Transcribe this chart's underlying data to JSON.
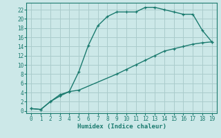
{
  "xlabel": "Humidex (Indice chaleur)",
  "xlim": [
    -0.5,
    19.5
  ],
  "ylim": [
    -0.5,
    23.5
  ],
  "xticks": [
    0,
    1,
    2,
    3,
    4,
    5,
    6,
    7,
    8,
    9,
    10,
    11,
    12,
    13,
    14,
    15,
    16,
    17,
    18,
    19
  ],
  "yticks": [
    0,
    2,
    4,
    6,
    8,
    10,
    12,
    14,
    16,
    18,
    20,
    22
  ],
  "bg_color": "#cce8e8",
  "grid_color": "#aacccc",
  "line_color": "#1a7a6e",
  "upper_curve_x": [
    0,
    1,
    2,
    3,
    4,
    5,
    6,
    7,
    8,
    9,
    10,
    11,
    12,
    13,
    14,
    15,
    16,
    17,
    18,
    19
  ],
  "upper_curve_y": [
    0.5,
    0.3,
    2.0,
    3.5,
    4.2,
    8.5,
    14.2,
    18.5,
    20.5,
    21.5,
    21.5,
    21.5,
    22.5,
    22.5,
    22.0,
    21.5,
    21.0,
    21.0,
    17.5,
    15.0
  ],
  "lower_curve_x": [
    0,
    1,
    2,
    3,
    4,
    5,
    9,
    10,
    11,
    12,
    13,
    14,
    15,
    16,
    17,
    18,
    19
  ],
  "lower_curve_y": [
    0.5,
    0.3,
    2.0,
    3.2,
    4.2,
    4.5,
    8.0,
    9.0,
    10.0,
    11.0,
    12.0,
    13.0,
    13.5,
    14.0,
    14.5,
    14.8,
    15.0
  ]
}
